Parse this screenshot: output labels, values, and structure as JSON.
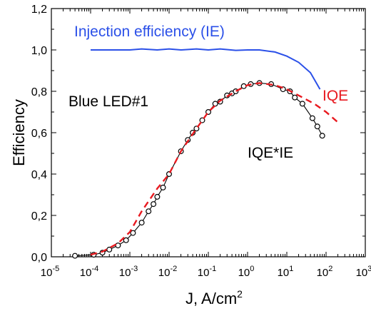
{
  "chart_data": {
    "type": "line",
    "title": "",
    "xlabel": "J, A/cm",
    "xlabel_sup": "2",
    "ylabel": "Efficiency",
    "xscale": "log",
    "xlim": [
      1e-05,
      1000
    ],
    "ylim": [
      0,
      1.2
    ],
    "x_ticks": [
      {
        "base": "10",
        "exp": "-5"
      },
      {
        "base": "10",
        "exp": "-4"
      },
      {
        "base": "10",
        "exp": "-3"
      },
      {
        "base": "10",
        "exp": "-2"
      },
      {
        "base": "10",
        "exp": "-1"
      },
      {
        "base": "10",
        "exp": "0"
      },
      {
        "base": "10",
        "exp": "1"
      },
      {
        "base": "10",
        "exp": "2"
      },
      {
        "base": "10",
        "exp": "3"
      }
    ],
    "y_ticks": [
      "0,0",
      "0,2",
      "0,4",
      "0,6",
      "0,8",
      "1,0",
      "1,2"
    ],
    "annotations": {
      "device": "Blue LED#1",
      "ie": "Injection efficiency (IE)",
      "iqe": "IQE",
      "product": "IQE*IE"
    },
    "colors": {
      "ie": "#2b50e8",
      "iqe": "#e8191f",
      "product": "#000000"
    },
    "series": [
      {
        "name": "Injection efficiency (IE)",
        "style": "solid",
        "color": "#2b50e8",
        "points": [
          [
            0.0001,
            1.0
          ],
          [
            0.0002,
            1.0
          ],
          [
            0.0005,
            1.0
          ],
          [
            0.001,
            1.0
          ],
          [
            0.002,
            1.005
          ],
          [
            0.005,
            1.0
          ],
          [
            0.01,
            1.005
          ],
          [
            0.02,
            1.0
          ],
          [
            0.05,
            1.005
          ],
          [
            0.1,
            1.0
          ],
          [
            0.2,
            1.005
          ],
          [
            0.5,
            0.998
          ],
          [
            1,
            1.0
          ],
          [
            2,
            1.0
          ],
          [
            5,
            0.99
          ],
          [
            10,
            0.97
          ],
          [
            20,
            0.94
          ],
          [
            40,
            0.89
          ],
          [
            70,
            0.81
          ]
        ]
      },
      {
        "name": "IQE",
        "style": "dashed",
        "color": "#e8191f",
        "points": [
          [
            0.0001,
            0.01
          ],
          [
            0.0002,
            0.025
          ],
          [
            0.0005,
            0.065
          ],
          [
            0.001,
            0.12
          ],
          [
            0.002,
            0.22
          ],
          [
            0.005,
            0.33
          ],
          [
            0.01,
            0.4
          ],
          [
            0.02,
            0.51
          ],
          [
            0.05,
            0.62
          ],
          [
            0.1,
            0.7
          ],
          [
            0.2,
            0.755
          ],
          [
            0.5,
            0.8
          ],
          [
            1,
            0.83
          ],
          [
            2,
            0.84
          ],
          [
            5,
            0.83
          ],
          [
            10,
            0.81
          ],
          [
            20,
            0.78
          ],
          [
            50,
            0.74
          ],
          [
            100,
            0.7
          ],
          [
            200,
            0.65
          ]
        ]
      },
      {
        "name": "IQE*IE",
        "style": "solid-markers",
        "color": "#000000",
        "points": [
          [
            4e-05,
            0.005
          ],
          [
            0.00012,
            0.01
          ],
          [
            0.0002,
            0.02
          ],
          [
            0.0003,
            0.035
          ],
          [
            0.0005,
            0.055
          ],
          [
            0.0008,
            0.08
          ],
          [
            0.0012,
            0.115
          ],
          [
            0.002,
            0.165
          ],
          [
            0.003,
            0.22
          ],
          [
            0.004,
            0.255
          ],
          [
            0.005,
            0.29
          ],
          [
            0.007,
            0.335
          ],
          [
            0.01,
            0.4
          ],
          [
            0.02,
            0.51
          ],
          [
            0.03,
            0.565
          ],
          [
            0.04,
            0.6
          ],
          [
            0.05,
            0.62
          ],
          [
            0.07,
            0.66
          ],
          [
            0.1,
            0.7
          ],
          [
            0.15,
            0.74
          ],
          [
            0.2,
            0.75
          ],
          [
            0.3,
            0.78
          ],
          [
            0.4,
            0.79
          ],
          [
            0.5,
            0.8
          ],
          [
            0.8,
            0.825
          ],
          [
            1.2,
            0.835
          ],
          [
            2,
            0.84
          ],
          [
            4,
            0.835
          ],
          [
            8,
            0.81
          ],
          [
            12,
            0.8
          ],
          [
            16,
            0.77
          ],
          [
            25,
            0.74
          ],
          [
            45,
            0.67
          ],
          [
            60,
            0.63
          ],
          [
            80,
            0.585
          ]
        ]
      }
    ]
  }
}
